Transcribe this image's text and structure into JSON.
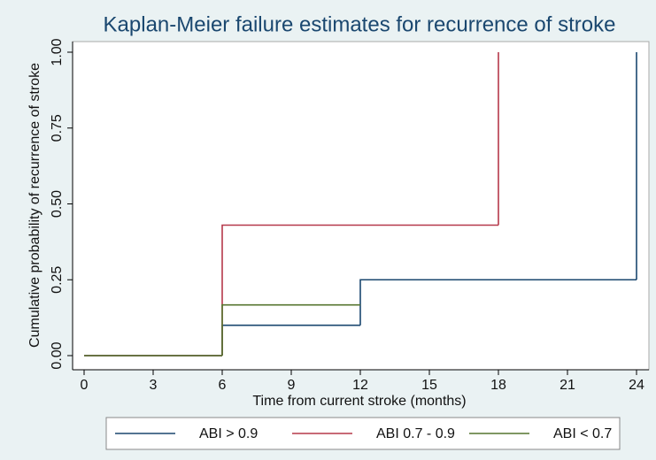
{
  "chart_data": {
    "type": "step",
    "title": "Kaplan-Meier failure estimates for recurrence of stroke",
    "x_label": "Time from current stroke (months)",
    "y_label": "Cumulative probability of recurrence of stroke",
    "series": [
      {
        "name": "ABI > 0.9",
        "color": "#1a476f",
        "x": [
          0,
          6,
          12,
          24
        ],
        "values": [
          0,
          0.1,
          0.25,
          1
        ]
      },
      {
        "name": "ABI 0.7 - 0.9",
        "color": "#b5384a",
        "x": [
          0,
          6,
          18
        ],
        "values": [
          0,
          0.43,
          1
        ]
      },
      {
        "name": "ABI < 0.7",
        "color": "#55752f",
        "x": [
          0,
          6,
          12
        ],
        "values": [
          0,
          0.167,
          0.167
        ]
      }
    ],
    "xlim": [
      0,
      24
    ],
    "xticks": [
      0,
      3,
      6,
      9,
      12,
      15,
      18,
      21,
      24
    ],
    "ylim": [
      0,
      1
    ],
    "yticks": [
      {
        "value": 0,
        "label": "0.00"
      },
      {
        "value": 0.25,
        "label": "0.25"
      },
      {
        "value": 0.5,
        "label": "0.50"
      },
      {
        "value": 0.75,
        "label": "0.75"
      },
      {
        "value": 1,
        "label": "1.00"
      }
    ],
    "legend": "bottom"
  }
}
